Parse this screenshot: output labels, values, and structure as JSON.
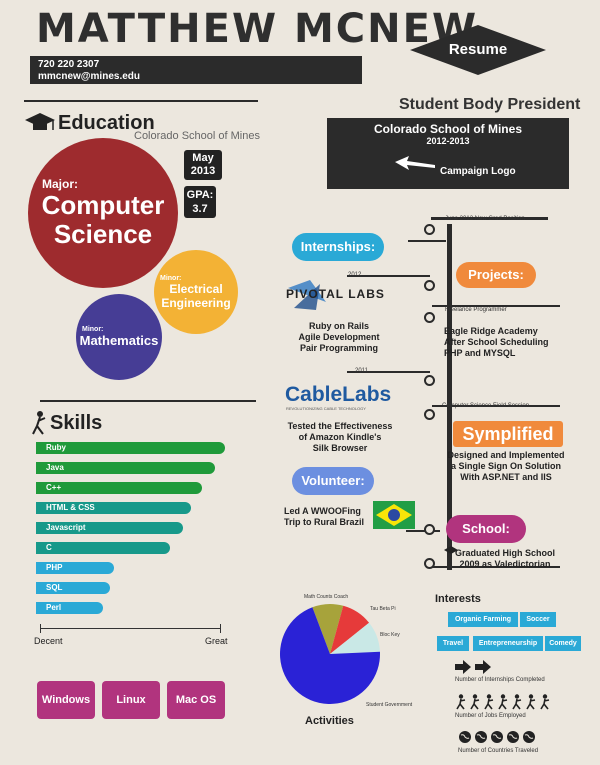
{
  "header": {
    "name": "MATTHEW MCNEW.",
    "phone": "720 220 2307",
    "email": "mmcnew@mines.edu",
    "resume_label": "Resume"
  },
  "education": {
    "title": "Education",
    "school": "Colorado School of Mines",
    "major_label": "Major:",
    "major_line1": "Computer",
    "major_line2": "Science",
    "date_line1": "May",
    "date_line2": "2013",
    "gpa_label": "GPA:",
    "gpa_value": "3.7",
    "minor1_label": "Minor:",
    "minor1_line1": "Electrical",
    "minor1_line2": "Engineering",
    "minor2_label": "Minor:",
    "minor2_value": "Mathematics"
  },
  "skills": {
    "title": "Skills",
    "items": [
      "Ruby",
      "Java",
      "C++",
      "HTML & CSS",
      "Javascript",
      "C",
      "PHP",
      "SQL",
      "Perl"
    ],
    "levels": [
      0.9,
      0.85,
      0.79,
      0.74,
      0.7,
      0.64,
      0.37,
      0.35,
      0.32
    ],
    "colors": [
      "#1f9a3a",
      "#1f9a3a",
      "#1f9a3a",
      "#17998a",
      "#17998a",
      "#17998a",
      "#2aa9d6",
      "#2aa9d6",
      "#2aa9d6"
    ],
    "scale_low": "Decent",
    "scale_high": "Great",
    "os": [
      "Windows",
      "Linux",
      "Mac OS"
    ]
  },
  "president": {
    "title": "Student Body President",
    "school": "Colorado School of Mines",
    "years": "2012-2013",
    "logo_label": "Campaign Logo"
  },
  "timeline": {
    "june_2012": "June 2012 New Grad Position",
    "internships": "Internships:",
    "year_2012": "2012",
    "pivotal_logo": "PIVOTAL LABS",
    "pivotal_desc": [
      "Ruby on Rails",
      "Agile Development",
      "Pair Programming"
    ],
    "projects": "Projects:",
    "freelance": "Freelance Programmer",
    "eagle_desc": [
      "Eagle Ridge Academy",
      "After School Scheduling",
      "PHP and MYSQL"
    ],
    "year_2011": "2011",
    "cablelabs_logo": "CableLabs",
    "cablelabs_sub": "REVOLUTIONIZING CABLE TECHNOLOGY",
    "cablelabs_desc": [
      "Tested the Effectiveness",
      "of Amazon Kindle's",
      "Silk Browser"
    ],
    "computer_science_field": "Computer Science Field Session",
    "symplified_logo": "Symplified",
    "symplified_desc": [
      "Designed and Implemented",
      "a Single Sign On Solution",
      "With ASP.NET and IIS"
    ],
    "volunteer": "Volunteer:",
    "volunteer_desc": [
      "Led A WWOOFing",
      "Trip to Rural Brazil"
    ],
    "school": "School:",
    "school_desc": [
      "Graduated High School",
      "2009 as Valedictorian"
    ]
  },
  "activities": {
    "title": "Activities",
    "chart_data": {
      "type": "pie",
      "categories": [
        "Math Counts Coach",
        "Tau Beta Pi",
        "Bloc Key",
        "Student Government"
      ],
      "values": [
        10,
        10,
        10,
        70
      ],
      "colors": [
        "#a7a33b",
        "#e63a3a",
        "#c9e8e6",
        "#2a22d6"
      ]
    }
  },
  "interests": {
    "title": "Interests",
    "tags_row1": [
      "Organic Farming",
      "Soccer"
    ],
    "tags_row2": [
      "Travel",
      "Entrepreneurship",
      "Comedy"
    ],
    "metric1": "Number of Internships Completed",
    "metric2": "Number of Jobs Employed",
    "metric3": "Number of Countries Traveled"
  }
}
